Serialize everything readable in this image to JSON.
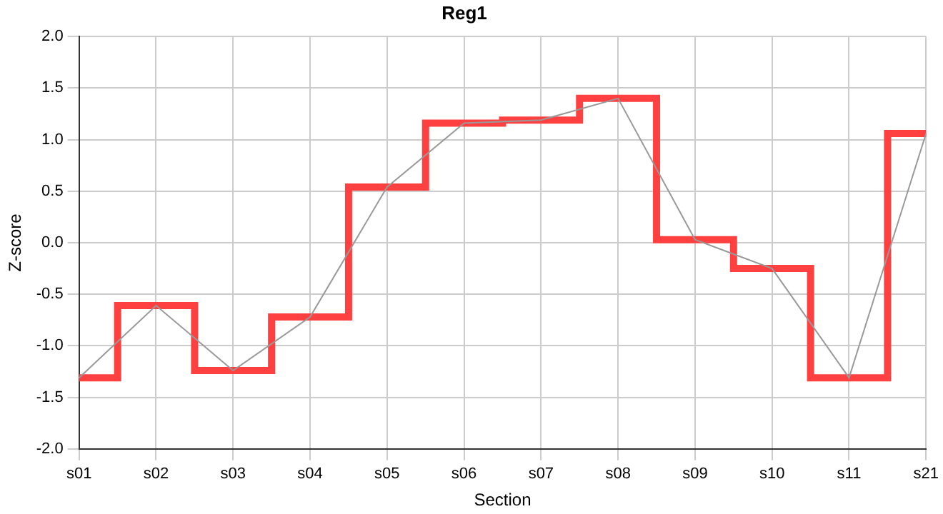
{
  "chart_data": {
    "type": "step",
    "title": "Reg1",
    "xlabel": "Section",
    "ylabel": "Z-score",
    "categories": [
      "s01",
      "s02",
      "s03",
      "s04",
      "s05",
      "s06",
      "s07",
      "s08",
      "s09",
      "s10",
      "s11",
      "s21"
    ],
    "series": [
      {
        "type": "line",
        "color": "#999999",
        "values": [
          -1.31,
          -0.61,
          -1.24,
          -0.72,
          0.54,
          1.16,
          1.19,
          1.4,
          0.03,
          -0.25,
          -1.31,
          1.06
        ]
      },
      {
        "color": "#ff4040",
        "values": [
          -1.31,
          -0.61,
          -1.24,
          -0.72,
          0.54,
          1.16,
          1.19,
          1.4,
          0.03,
          -0.25,
          -1.31,
          1.06
        ]
      }
    ],
    "ylim": [
      -2,
      2
    ],
    "yticks": [
      {
        "value": -2,
        "label": "-2.0"
      },
      {
        "value": -1.5,
        "label": "-1.5"
      },
      {
        "value": -1,
        "label": "-1.0"
      },
      {
        "value": -0.5,
        "label": "-0.5"
      },
      {
        "value": 0,
        "label": "0.0"
      },
      {
        "value": 0.5,
        "label": "0.5"
      },
      {
        "value": 1,
        "label": "1.0"
      },
      {
        "value": 1.5,
        "label": "1.5"
      },
      {
        "value": 2,
        "label": "2.0"
      }
    ],
    "grid": true,
    "legend": false,
    "marker": "none"
  }
}
